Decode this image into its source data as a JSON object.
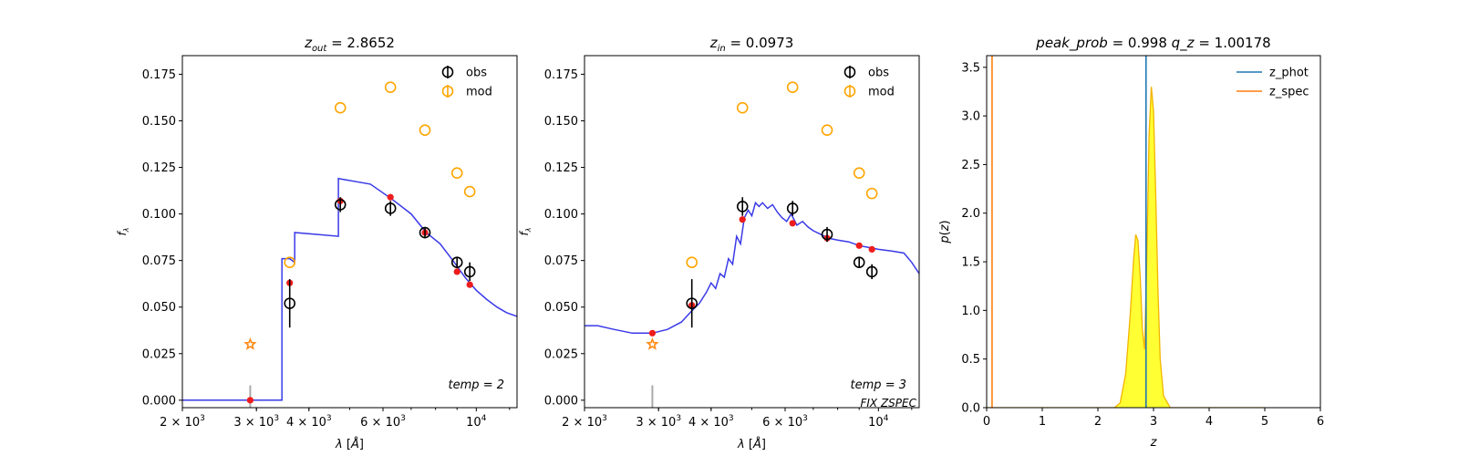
{
  "colors": {
    "obs": "#000000",
    "mod": "#ffa500",
    "sed_line": "#3a3ae8",
    "model_pts": "#ee1c1c",
    "star": "#ff8c1a",
    "ir_tick": "#aaaaaa",
    "z_phot": "#1f77b4",
    "z_spec": "#ff7f0e",
    "pdf_fill": "#ffff33",
    "pdf_edge": "#f2b400"
  },
  "chart_data": [
    {
      "type": "scatter",
      "panel": "sed-left",
      "title": "z_out = 2.8652",
      "title_parts": {
        "var": "z",
        "sub": "out",
        "rest": " = 2.8652"
      },
      "xlabel": "λ [Å]",
      "ylabel": "fλ",
      "xscale": "log",
      "xlim": [
        2000,
        12500
      ],
      "ylim": [
        -0.004,
        0.185
      ],
      "x_ticks": [
        {
          "v": 2000,
          "base": "2 × 10",
          "exp": "3"
        },
        {
          "v": 3000,
          "base": "3 × 10",
          "exp": "3"
        },
        {
          "v": 4000,
          "base": "4 × 10",
          "exp": "3"
        },
        {
          "v": 6000,
          "base": "6 × 10",
          "exp": "3"
        },
        {
          "v": 10000,
          "base": "10",
          "exp": "4"
        }
      ],
      "y_ticks": [
        "0.000",
        "0.025",
        "0.050",
        "0.075",
        "0.100",
        "0.125",
        "0.150",
        "0.175"
      ],
      "legend": {
        "position": "top-right",
        "items": [
          {
            "label": "obs",
            "series": "obs"
          },
          {
            "label": "mod",
            "series": "mod"
          }
        ]
      },
      "annotation": "temp = 2",
      "series": [
        {
          "name": "obs",
          "x": [
            3600,
            4750,
            6250,
            7550,
            9000,
            9650
          ],
          "y": [
            0.052,
            0.105,
            0.103,
            0.09,
            0.074,
            0.069
          ],
          "err": [
            0.013,
            0.004,
            0.004,
            0.003,
            0.003,
            0.005
          ]
        },
        {
          "name": "mod",
          "x": [
            3600,
            4750,
            6250,
            7550,
            9000,
            9650
          ],
          "y": [
            0.074,
            0.157,
            0.168,
            0.145,
            0.122,
            0.112
          ]
        },
        {
          "id": "model_points",
          "x": [
            2900,
            3600,
            4750,
            6250,
            7550,
            9000,
            9650
          ],
          "y": [
            0.0,
            0.063,
            0.107,
            0.109,
            0.09,
            0.069,
            0.062
          ]
        },
        {
          "id": "ir_star",
          "x": [
            2900
          ],
          "y": [
            0.03
          ]
        },
        {
          "id": "ir_tick",
          "x": [
            2900
          ],
          "y": [
            0.008
          ]
        },
        {
          "id": "sed",
          "x": [
            2000,
            3450,
            3450,
            3600,
            3700,
            3700,
            4200,
            4700,
            4700,
            5600,
            6300,
            7000,
            7600,
            8200,
            8800,
            9400,
            10000,
            10600,
            11200,
            11800,
            12500
          ],
          "y": [
            0.0,
            0.0,
            0.076,
            0.076,
            0.074,
            0.09,
            0.089,
            0.088,
            0.119,
            0.116,
            0.108,
            0.1,
            0.09,
            0.084,
            0.075,
            0.066,
            0.059,
            0.054,
            0.05,
            0.047,
            0.045
          ]
        }
      ]
    },
    {
      "type": "scatter",
      "panel": "sed-mid",
      "title": "z_in = 0.0973",
      "title_parts": {
        "var": "z",
        "sub": "in",
        "rest": " = 0.0973"
      },
      "xlabel": "λ [Å]",
      "ylabel": "fλ",
      "xscale": "log",
      "xlim": [
        2000,
        12500
      ],
      "ylim": [
        -0.004,
        0.185
      ],
      "x_ticks": [
        {
          "v": 2000,
          "base": "2 × 10",
          "exp": "3"
        },
        {
          "v": 3000,
          "base": "3 × 10",
          "exp": "3"
        },
        {
          "v": 4000,
          "base": "4 × 10",
          "exp": "3"
        },
        {
          "v": 6000,
          "base": "6 × 10",
          "exp": "3"
        },
        {
          "v": 10000,
          "base": "10",
          "exp": "4"
        }
      ],
      "y_ticks": [
        "0.000",
        "0.025",
        "0.050",
        "0.075",
        "0.100",
        "0.125",
        "0.150",
        "0.175"
      ],
      "legend": {
        "position": "top-right",
        "items": [
          {
            "label": "obs",
            "series": "obs"
          },
          {
            "label": "mod",
            "series": "mod"
          }
        ]
      },
      "annotation": "temp = 3",
      "annotation2": "FIX ZSPEC",
      "series": [
        {
          "name": "obs",
          "x": [
            3600,
            4750,
            6250,
            7550,
            9000,
            9650
          ],
          "y": [
            0.052,
            0.104,
            0.103,
            0.089,
            0.074,
            0.069
          ],
          "err": [
            0.013,
            0.005,
            0.004,
            0.004,
            0.003,
            0.004
          ]
        },
        {
          "name": "mod",
          "x": [
            3600,
            4750,
            6250,
            7550,
            9000,
            9650
          ],
          "y": [
            0.074,
            0.157,
            0.168,
            0.145,
            0.122,
            0.111
          ]
        },
        {
          "id": "model_points",
          "x": [
            2900,
            3600,
            4750,
            6250,
            7550,
            9000,
            9650
          ],
          "y": [
            0.036,
            0.051,
            0.097,
            0.095,
            0.087,
            0.083,
            0.081
          ]
        },
        {
          "id": "ir_star",
          "x": [
            2900
          ],
          "y": [
            0.03
          ]
        },
        {
          "id": "ir_tick",
          "x": [
            2900
          ],
          "y": [
            0.008
          ]
        },
        {
          "id": "sed",
          "x": [
            2000,
            2150,
            2350,
            2600,
            2900,
            3150,
            3400,
            3600,
            3750,
            3900,
            4000,
            4100,
            4200,
            4300,
            4400,
            4500,
            4600,
            4700,
            4800,
            4900,
            5000,
            5100,
            5200,
            5300,
            5450,
            5600,
            5750,
            5900,
            6050,
            6200,
            6400,
            6600,
            6800,
            7000,
            7300,
            7600,
            8000,
            8500,
            9000,
            9500,
            10000,
            10800,
            11500,
            12000,
            12500
          ],
          "y": [
            0.04,
            0.04,
            0.038,
            0.036,
            0.036,
            0.038,
            0.042,
            0.048,
            0.052,
            0.058,
            0.063,
            0.06,
            0.068,
            0.066,
            0.076,
            0.073,
            0.088,
            0.084,
            0.098,
            0.102,
            0.099,
            0.106,
            0.104,
            0.106,
            0.103,
            0.105,
            0.101,
            0.098,
            0.096,
            0.1,
            0.094,
            0.096,
            0.093,
            0.091,
            0.089,
            0.087,
            0.086,
            0.085,
            0.083,
            0.082,
            0.081,
            0.08,
            0.079,
            0.074,
            0.068
          ]
        }
      ]
    },
    {
      "type": "line",
      "panel": "pdz",
      "title": "peak_prob = 0.998",
      "title_parts": {
        "left": "peak_prob",
        "left_rest": " = 0.998",
        "right": "q_z",
        "right_rest": " = 1.00178"
      },
      "xlabel": "z",
      "ylabel": "p(z)",
      "xlim": [
        0,
        6
      ],
      "ylim": [
        0,
        3.62
      ],
      "x_ticks": [
        "0",
        "1",
        "2",
        "3",
        "4",
        "5",
        "6"
      ],
      "y_ticks": [
        "0.0",
        "0.5",
        "1.0",
        "1.5",
        "2.0",
        "2.5",
        "3.0",
        "3.5"
      ],
      "legend": {
        "position": "top-right",
        "items": [
          {
            "label": "z_phot",
            "series": "z_phot"
          },
          {
            "label": "z_spec",
            "series": "z_spec"
          }
        ]
      },
      "series": [
        {
          "name": "z_phot",
          "type": "vline",
          "x": 2.8652
        },
        {
          "name": "z_spec",
          "type": "vline",
          "x": 0.0973
        },
        {
          "id": "pdf",
          "x": [
            0.0,
            2.3,
            2.4,
            2.5,
            2.58,
            2.64,
            2.68,
            2.72,
            2.76,
            2.8,
            2.84,
            2.88,
            2.92,
            2.96,
            3.0,
            3.04,
            3.08,
            3.12,
            3.18,
            3.3,
            5.0
          ],
          "y": [
            0.0,
            0.0,
            0.05,
            0.35,
            0.95,
            1.5,
            1.78,
            1.72,
            1.35,
            0.8,
            0.6,
            1.55,
            2.8,
            3.3,
            3.05,
            2.2,
            1.2,
            0.5,
            0.12,
            0.0,
            0.0
          ]
        }
      ]
    }
  ]
}
